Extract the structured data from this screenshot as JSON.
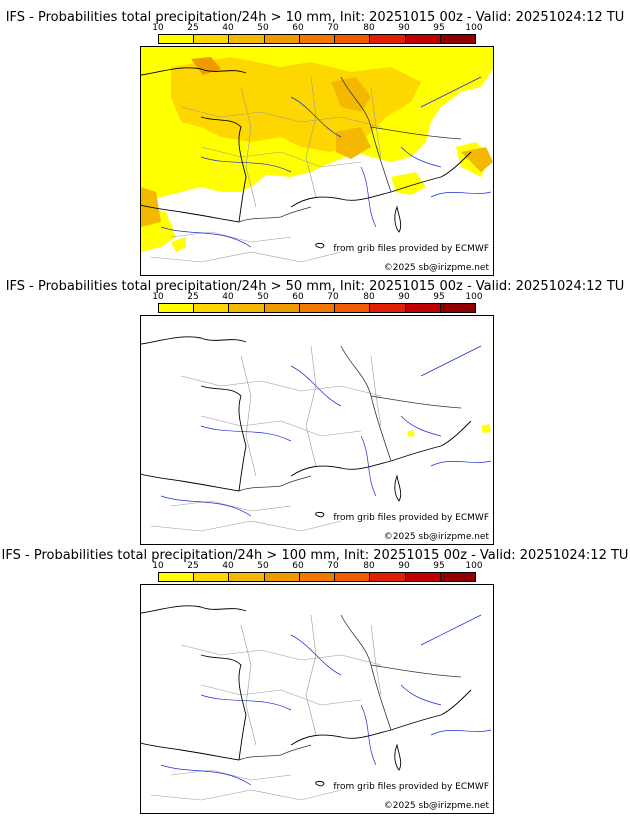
{
  "colors": {
    "scale": [
      "#ffff00",
      "#ffd700",
      "#f5b800",
      "#f09a00",
      "#f07800",
      "#f05a00",
      "#e02000",
      "#c00000",
      "#900000",
      "#600000"
    ],
    "coast": "#000000",
    "rivers": "#1f2fd0",
    "borders_minor": "#9a9a9a"
  },
  "legend": {
    "labels": [
      "10",
      "25",
      "40",
      "50",
      "60",
      "70",
      "80",
      "90",
      "95",
      "100"
    ]
  },
  "panels": [
    {
      "title": "IFS - Probabilities total precipitation/24h > 10 mm, Init: 20251015 00z - Valid: 20251024:12 TU",
      "threshold_mm": 10,
      "credit_source": "from grib files provided by ECMWF",
      "credit_copy": "©2025 sb@irizpme.net"
    },
    {
      "title": "IFS - Probabilities total precipitation/24h > 50 mm, Init: 20251015 00z - Valid: 20251024:12 TU",
      "threshold_mm": 50,
      "credit_source": "from grib files provided by ECMWF",
      "credit_copy": "©2025 sb@irizpme.net"
    },
    {
      "title": "IFS - Probabilities total precipitation/24h > 100 mm, Init: 20251015 00z - Valid: 20251024:12 TU",
      "threshold_mm": 100,
      "credit_source": "from grib files provided by ECMWF",
      "credit_copy": "©2025 sb@irizpme.net"
    }
  ]
}
